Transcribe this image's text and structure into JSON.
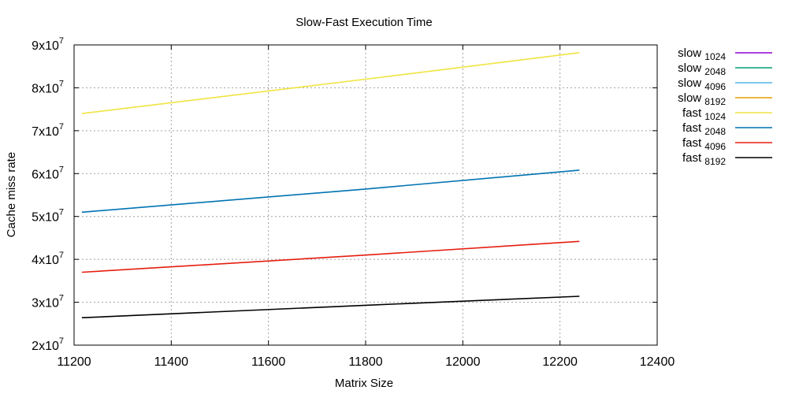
{
  "chart_data": {
    "type": "line",
    "title": "Slow-Fast Execution Time",
    "xlabel": "Matrix Size",
    "ylabel": "Cache miss rate",
    "xlim": [
      11200,
      12400
    ],
    "ylim": [
      20000000,
      90000000
    ],
    "xticks": [
      {
        "value": 11200,
        "label": "11200"
      },
      {
        "value": 11400,
        "label": "11400"
      },
      {
        "value": 11600,
        "label": "11600"
      },
      {
        "value": 11800,
        "label": "11800"
      },
      {
        "value": 12000,
        "label": "12000"
      },
      {
        "value": 12200,
        "label": "12200"
      },
      {
        "value": 12400,
        "label": "12400"
      }
    ],
    "yticks": [
      {
        "value": 20000000,
        "base": "2x10",
        "exp": "7"
      },
      {
        "value": 30000000,
        "base": "3x10",
        "exp": "7"
      },
      {
        "value": 40000000,
        "base": "4x10",
        "exp": "7"
      },
      {
        "value": 50000000,
        "base": "5x10",
        "exp": "7"
      },
      {
        "value": 60000000,
        "base": "6x10",
        "exp": "7"
      },
      {
        "value": 70000000,
        "base": "7x10",
        "exp": "7"
      },
      {
        "value": 80000000,
        "base": "8x10",
        "exp": "7"
      },
      {
        "value": 90000000,
        "base": "9x10",
        "exp": "7"
      }
    ],
    "grid": true,
    "legend_position": "outside-right",
    "series": [
      {
        "name": "slow",
        "sub": "1024",
        "color": "#9400d3",
        "points": []
      },
      {
        "name": "slow",
        "sub": "2048",
        "color": "#009e73",
        "points": []
      },
      {
        "name": "slow",
        "sub": "4096",
        "color": "#56b4e9",
        "points": []
      },
      {
        "name": "slow",
        "sub": "8192",
        "color": "#e69f00",
        "points": []
      },
      {
        "name": "fast",
        "sub": "1024",
        "color": "#f0e442",
        "points": [
          [
            11216,
            74000000
          ],
          [
            11800,
            82000000
          ],
          [
            12240,
            88200000
          ]
        ]
      },
      {
        "name": "fast",
        "sub": "2048",
        "color": "#0072b2",
        "points": [
          [
            11216,
            51000000
          ],
          [
            11800,
            56400000
          ],
          [
            12240,
            60800000
          ]
        ]
      },
      {
        "name": "fast",
        "sub": "4096",
        "color": "#e51e10",
        "points": [
          [
            11216,
            37000000
          ],
          [
            11800,
            41000000
          ],
          [
            12240,
            44200000
          ]
        ]
      },
      {
        "name": "fast",
        "sub": "8192",
        "color": "#000000",
        "points": [
          [
            11216,
            26400000
          ],
          [
            11800,
            29300000
          ],
          [
            12240,
            31400000
          ]
        ]
      }
    ]
  }
}
